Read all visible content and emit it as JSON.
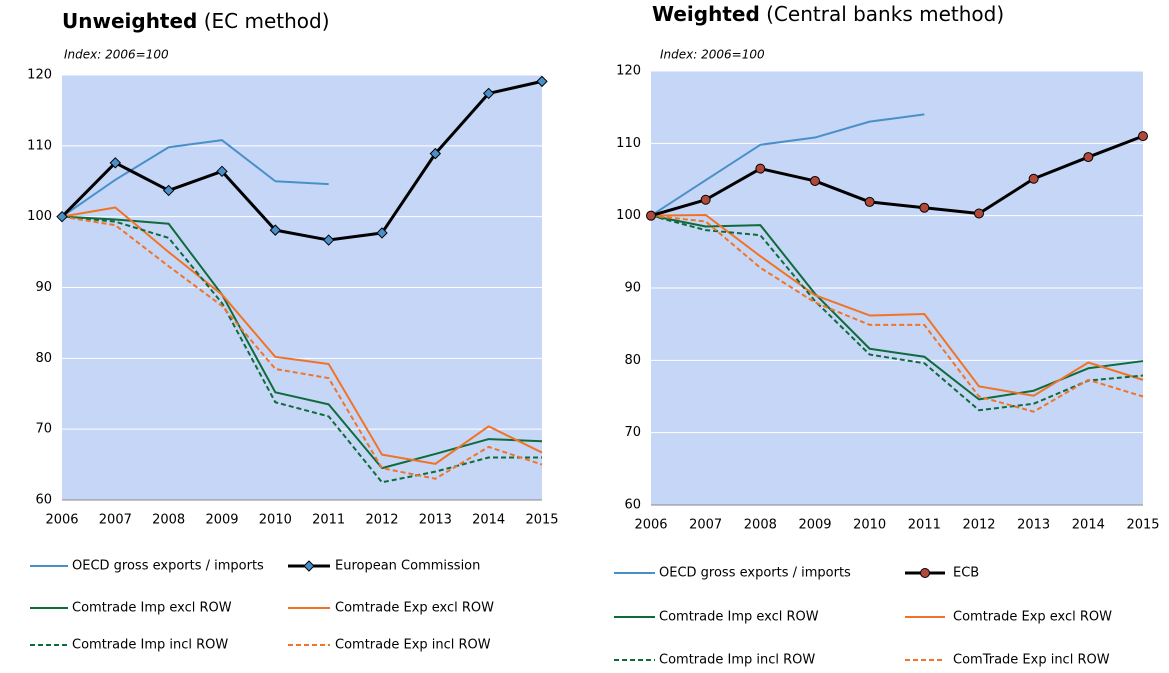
{
  "chart_data": [
    {
      "type": "line",
      "title": "Unweighted",
      "title_note": "(EC method)",
      "subtitle": "Index: 2006=100",
      "categories": [
        "2006",
        "2007",
        "2008",
        "2009",
        "2010",
        "2011",
        "2012",
        "2013",
        "2014",
        "2015"
      ],
      "ylim": [
        60,
        120
      ],
      "yticks": [
        60,
        70,
        80,
        90,
        100,
        110,
        120
      ],
      "grid": true,
      "series": [
        {
          "name": "OECD gross exports / imports",
          "color": "#4a90c8",
          "dash": false,
          "marker": null,
          "values": [
            100,
            105.2,
            109.8,
            110.8,
            105,
            104.6,
            null,
            null,
            null,
            null
          ]
        },
        {
          "name": "European Commission",
          "color": "#000000",
          "dash": false,
          "marker": "diamond",
          "marker_color": "#4a90c8",
          "values": [
            100,
            107.6,
            103.7,
            106.4,
            98.1,
            96.7,
            97.7,
            108.9,
            117.4,
            119.1
          ]
        },
        {
          "name": "Comtrade Imp excl ROW",
          "color": "#0e6b3a",
          "dash": false,
          "marker": null,
          "values": [
            100,
            99.6,
            99.0,
            89,
            75.2,
            73.5,
            64.5,
            66.5,
            68.6,
            68.3
          ]
        },
        {
          "name": "Comtrade Exp excl ROW",
          "color": "#f07427",
          "dash": false,
          "marker": null,
          "values": [
            100,
            101.3,
            95,
            89,
            80.2,
            79.2,
            66.4,
            65.1,
            70.4,
            66.7
          ]
        },
        {
          "name": "Comtrade Imp incl ROW",
          "color": "#0e6b3a",
          "dash": true,
          "marker": null,
          "values": [
            100,
            99.3,
            97.0,
            87.8,
            73.8,
            71.8,
            62.5,
            64,
            66,
            66
          ]
        },
        {
          "name": "Comtrade Exp incl ROW",
          "color": "#f07427",
          "dash": true,
          "marker": null,
          "values": [
            100,
            98.8,
            93,
            87.4,
            78.5,
            77.2,
            64.5,
            63,
            67.5,
            65
          ]
        }
      ]
    },
    {
      "type": "line",
      "title": "Weighted",
      "title_note": "(Central banks method)",
      "subtitle": "Index: 2006=100",
      "categories": [
        "2006",
        "2007",
        "2008",
        "2009",
        "2010",
        "2011",
        "2012",
        "2013",
        "2014",
        "2015"
      ],
      "ylim": [
        60,
        120
      ],
      "yticks": [
        60,
        70,
        80,
        90,
        100,
        110,
        120
      ],
      "grid": true,
      "series": [
        {
          "name": "OECD gross exports / imports",
          "color": "#4a90c8",
          "dash": false,
          "marker": null,
          "values": [
            100,
            104.9,
            109.8,
            110.8,
            113,
            114,
            null,
            null,
            null,
            null
          ]
        },
        {
          "name": "ECB",
          "color": "#000000",
          "dash": false,
          "marker": "circle",
          "marker_color": "#b0493a",
          "values": [
            100,
            102.2,
            106.5,
            104.8,
            101.9,
            101.1,
            100.3,
            105.1,
            108.1,
            111
          ]
        },
        {
          "name": "Comtrade Imp excl ROW",
          "color": "#0e6b3a",
          "dash": false,
          "marker": null,
          "values": [
            100,
            98.5,
            98.7,
            89.2,
            81.6,
            80.5,
            74.6,
            75.8,
            78.9,
            79.9
          ]
        },
        {
          "name": "Comtrade Exp excl ROW",
          "color": "#f07427",
          "dash": false,
          "marker": null,
          "values": [
            100,
            100.1,
            94.4,
            89,
            86.2,
            86.4,
            76.4,
            75.1,
            79.7,
            77.3
          ]
        },
        {
          "name": "Comtrade Imp incl ROW",
          "color": "#0e6b3a",
          "dash": true,
          "marker": null,
          "values": [
            100,
            98.0,
            97.3,
            88.2,
            80.8,
            79.6,
            73.1,
            74,
            77.2,
            77.9
          ]
        },
        {
          "name": "ComTrade Exp incl ROW",
          "color": "#f07427",
          "dash": true,
          "marker": null,
          "values": [
            100,
            99.2,
            92.8,
            88,
            84.9,
            84.9,
            75,
            72.9,
            77.3,
            75
          ]
        }
      ]
    }
  ]
}
